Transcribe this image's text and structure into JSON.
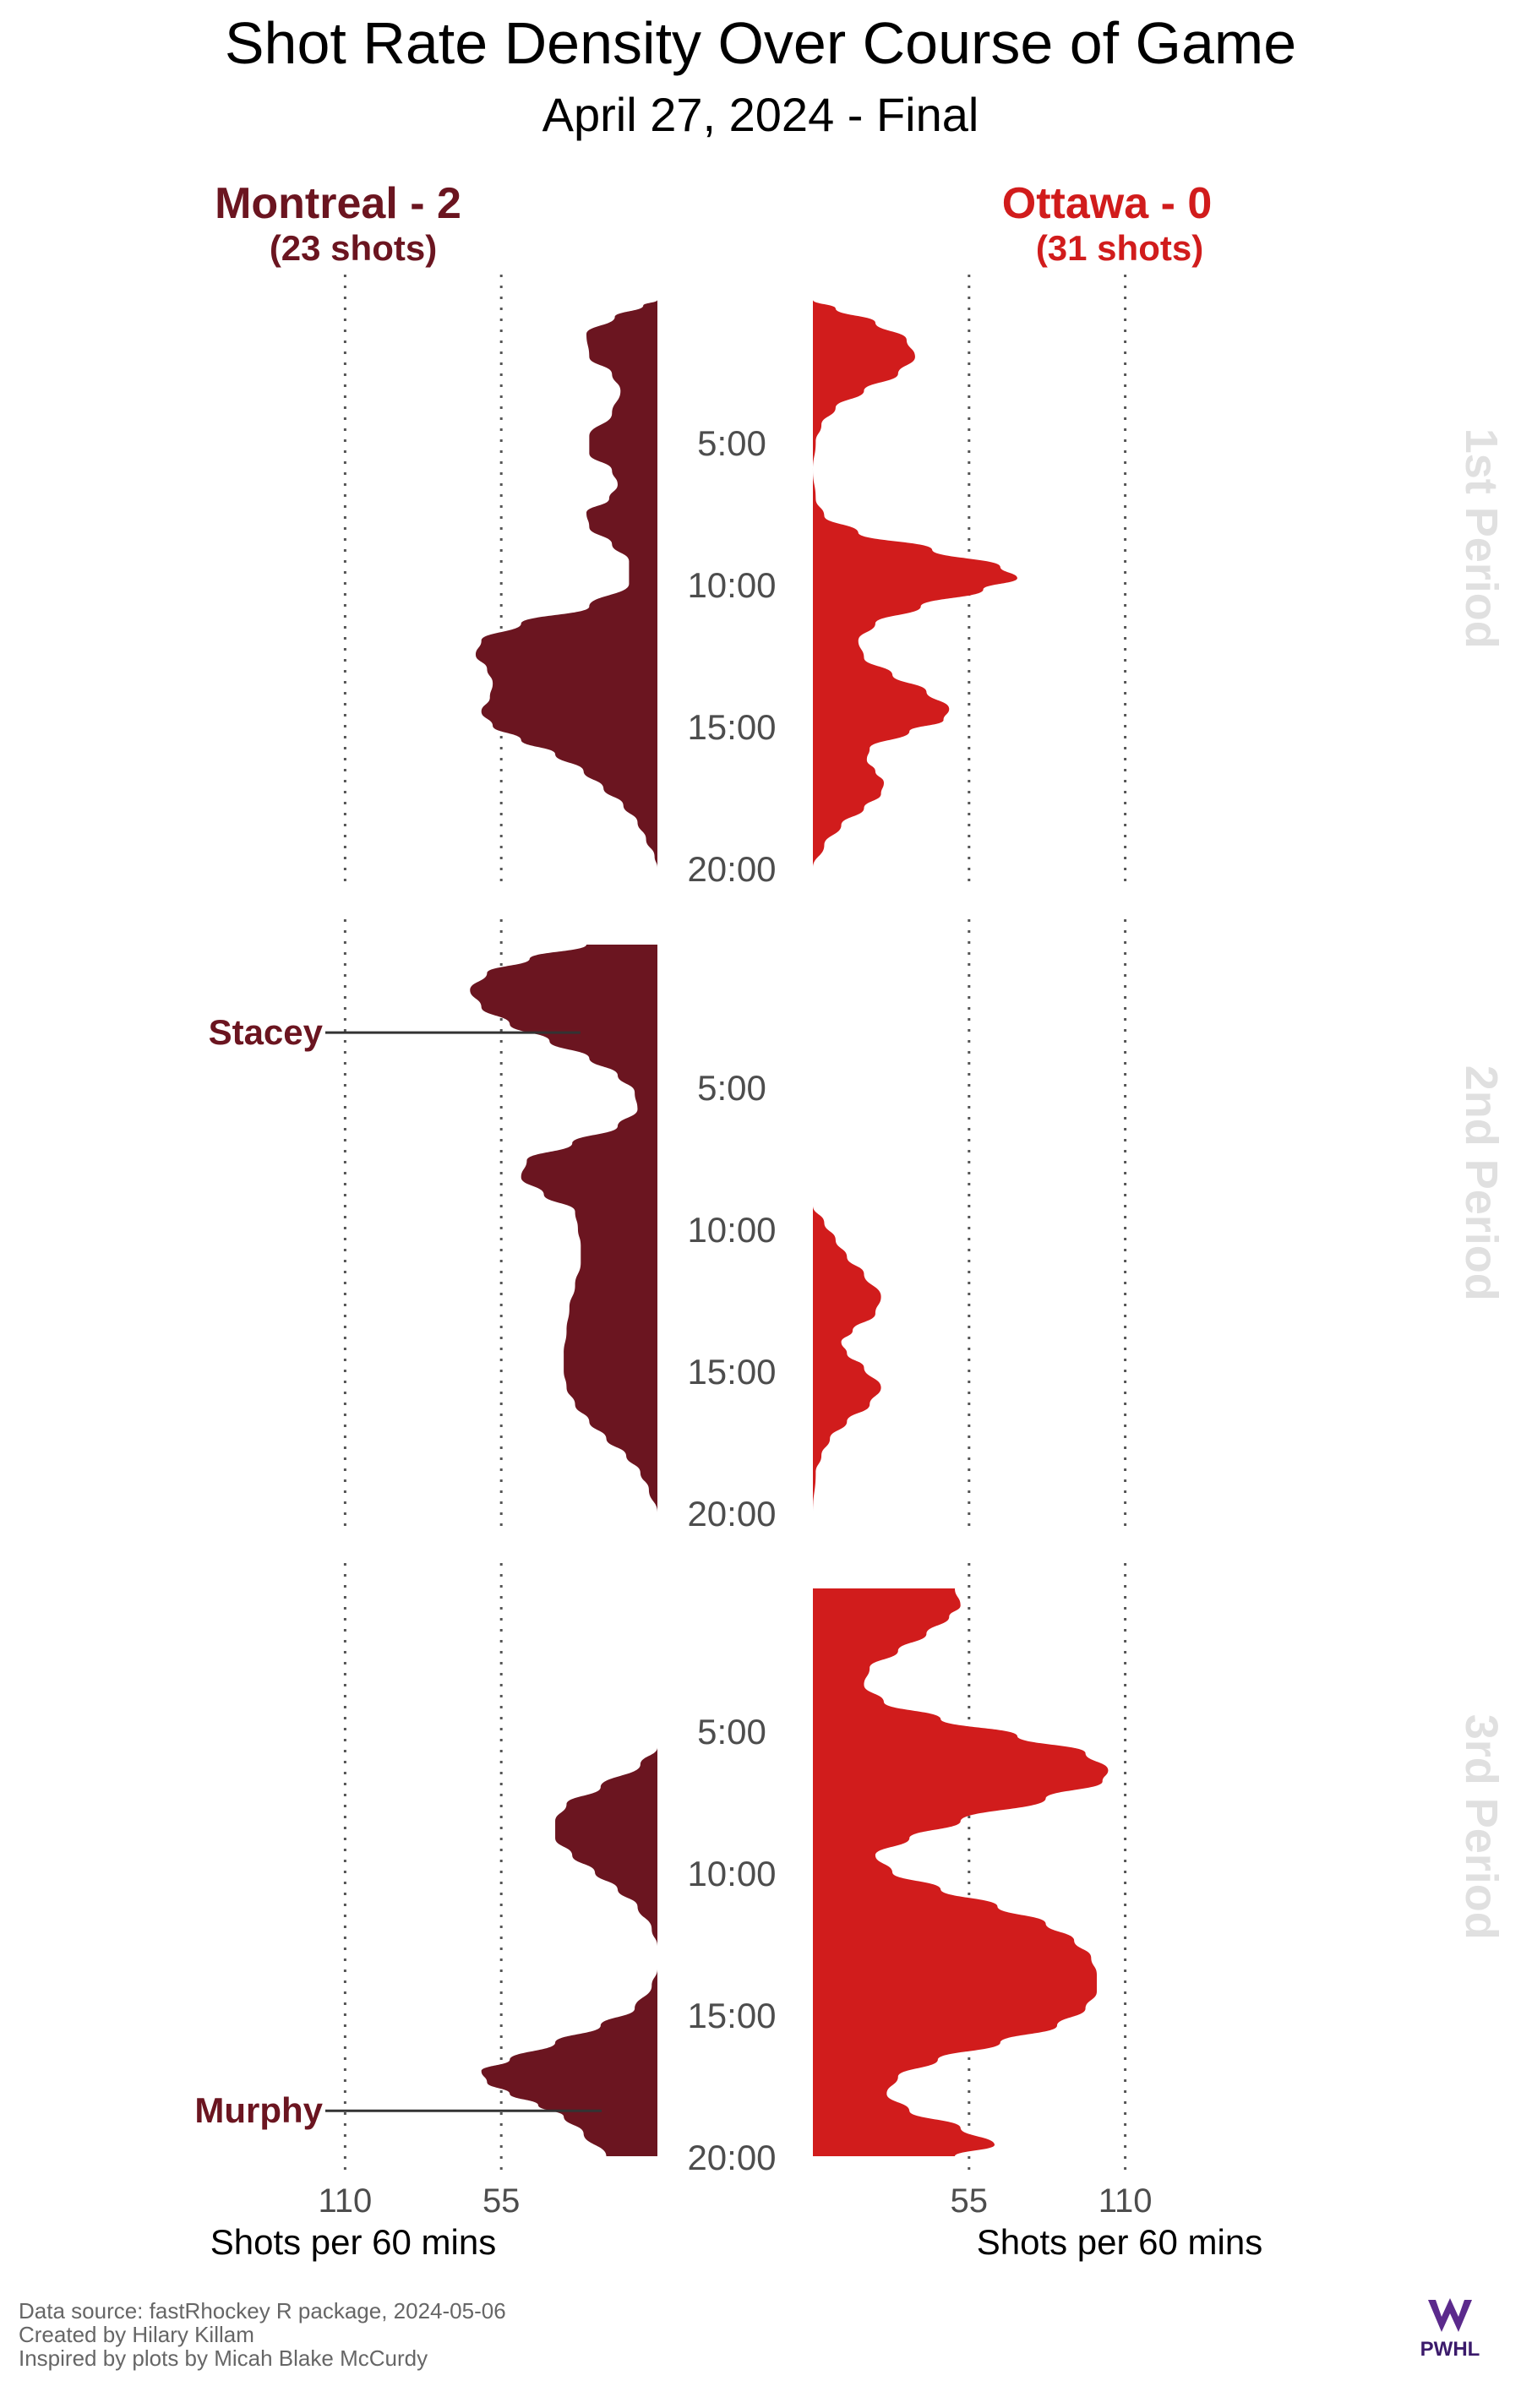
{
  "chart_data": {
    "type": "area",
    "title": "Shot Rate Density Over Course of Game",
    "subtitle": "April 27, 2024 - Final",
    "xlabel": "Shots per 60 mins",
    "x_ticks": [
      110,
      55
    ],
    "xlim": [
      0,
      160
    ],
    "time_ticks": [
      "5:00",
      "10:00",
      "15:00",
      "20:00"
    ],
    "ylim_minutes": [
      0,
      20
    ],
    "grid": "dotted vertical lines at 55 and 110",
    "teams": [
      {
        "name": "Montreal - 2",
        "shots_label": "(23 shots)",
        "color": "#6b1520",
        "side": "left",
        "periods": [
          {
            "period": "1st Period",
            "density": [
              [
                0,
                0
              ],
              [
                0.2,
                5
              ],
              [
                0.6,
                15
              ],
              [
                1.2,
                25
              ],
              [
                2,
                24
              ],
              [
                2.6,
                16
              ],
              [
                3.2,
                13
              ],
              [
                4,
                16
              ],
              [
                4.8,
                24
              ],
              [
                5.4,
                24
              ],
              [
                6,
                16
              ],
              [
                6.5,
                14
              ],
              [
                7,
                17
              ],
              [
                7.5,
                25
              ],
              [
                8,
                24
              ],
              [
                8.6,
                16
              ],
              [
                9.2,
                10
              ],
              [
                10,
                10
              ],
              [
                10.8,
                24
              ],
              [
                11.4,
                48
              ],
              [
                12,
                62
              ],
              [
                12.5,
                64
              ],
              [
                13,
                60
              ],
              [
                13.5,
                58
              ],
              [
                14,
                59
              ],
              [
                14.5,
                62
              ],
              [
                15,
                58
              ],
              [
                15.5,
                48
              ],
              [
                16,
                36
              ],
              [
                16.6,
                26
              ],
              [
                17.2,
                19
              ],
              [
                17.8,
                12
              ],
              [
                18.4,
                7
              ],
              [
                19,
                4
              ],
              [
                19.6,
                1
              ],
              [
                20,
                0
              ]
            ]
          },
          {
            "period": "2nd Period",
            "density": [
              [
                0,
                25
              ],
              [
                0.5,
                45
              ],
              [
                1,
                60
              ],
              [
                1.6,
                66
              ],
              [
                2.2,
                62
              ],
              [
                2.8,
                52
              ],
              [
                3.4,
                38
              ],
              [
                4,
                24
              ],
              [
                4.6,
                14
              ],
              [
                5.2,
                8
              ],
              [
                5.8,
                7
              ],
              [
                6.4,
                14
              ],
              [
                7,
                30
              ],
              [
                7.6,
                46
              ],
              [
                8.2,
                48
              ],
              [
                8.8,
                40
              ],
              [
                9.4,
                29
              ],
              [
                10,
                28
              ],
              [
                10.6,
                27
              ],
              [
                11.2,
                27
              ],
              [
                12,
                29
              ],
              [
                12.8,
                31
              ],
              [
                13.6,
                32
              ],
              [
                14.4,
                33
              ],
              [
                15,
                33
              ],
              [
                15.6,
                32
              ],
              [
                16.2,
                29
              ],
              [
                16.8,
                24
              ],
              [
                17.4,
                18
              ],
              [
                18,
                11
              ],
              [
                18.6,
                6
              ],
              [
                19.2,
                3
              ],
              [
                20,
                0
              ]
            ]
          },
          {
            "period": "3rd Period",
            "density": [
              [
                0,
                0
              ],
              [
                4,
                0
              ],
              [
                5.6,
                0
              ],
              [
                6.2,
                6
              ],
              [
                7,
                20
              ],
              [
                7.6,
                32
              ],
              [
                8.2,
                36
              ],
              [
                8.8,
                36
              ],
              [
                9.4,
                30
              ],
              [
                10,
                22
              ],
              [
                10.6,
                14
              ],
              [
                11.2,
                7
              ],
              [
                12,
                2
              ],
              [
                12.6,
                0
              ],
              [
                13.4,
                0
              ],
              [
                14,
                2
              ],
              [
                14.8,
                8
              ],
              [
                15.4,
                20
              ],
              [
                16,
                36
              ],
              [
                16.6,
                52
              ],
              [
                17,
                62
              ],
              [
                17.4,
                60
              ],
              [
                17.8,
                52
              ],
              [
                18.2,
                42
              ],
              [
                18.6,
                33
              ],
              [
                19.2,
                26
              ],
              [
                20,
                18
              ]
            ]
          }
        ]
      },
      {
        "name": "Ottawa - 0",
        "shots_label": "(31 shots)",
        "color": "#d11c1c",
        "side": "right",
        "periods": [
          {
            "period": "1st Period",
            "density": [
              [
                0,
                0
              ],
              [
                0.3,
                8
              ],
              [
                0.8,
                22
              ],
              [
                1.4,
                33
              ],
              [
                2,
                36
              ],
              [
                2.6,
                30
              ],
              [
                3.2,
                18
              ],
              [
                3.8,
                8
              ],
              [
                4.4,
                3
              ],
              [
                5,
                1
              ],
              [
                6,
                0
              ],
              [
                7,
                1
              ],
              [
                7.6,
                4
              ],
              [
                8.2,
                16
              ],
              [
                8.8,
                42
              ],
              [
                9.4,
                66
              ],
              [
                9.8,
                72
              ],
              [
                10.2,
                60
              ],
              [
                10.8,
                38
              ],
              [
                11.4,
                22
              ],
              [
                12,
                16
              ],
              [
                12.6,
                18
              ],
              [
                13.2,
                28
              ],
              [
                13.8,
                40
              ],
              [
                14.4,
                48
              ],
              [
                14.8,
                46
              ],
              [
                15.2,
                34
              ],
              [
                15.8,
                20
              ],
              [
                16.2,
                19
              ],
              [
                16.6,
                22
              ],
              [
                17,
                25
              ],
              [
                17.4,
                24
              ],
              [
                17.9,
                18
              ],
              [
                18.5,
                10
              ],
              [
                19.2,
                4
              ],
              [
                20,
                0
              ]
            ]
          },
          {
            "period": "2nd Period",
            "density": [
              [
                0,
                0
              ],
              [
                8,
                0
              ],
              [
                9.2,
                0
              ],
              [
                9.8,
                4
              ],
              [
                10.4,
                8
              ],
              [
                11,
                12
              ],
              [
                11.6,
                18
              ],
              [
                12.4,
                24
              ],
              [
                13,
                22
              ],
              [
                13.6,
                14
              ],
              [
                14,
                10
              ],
              [
                14.4,
                12
              ],
              [
                14.9,
                18
              ],
              [
                15.6,
                24
              ],
              [
                16.2,
                20
              ],
              [
                16.8,
                12
              ],
              [
                17.4,
                6
              ],
              [
                18,
                3
              ],
              [
                18.6,
                1
              ],
              [
                20,
                0
              ]
            ]
          },
          {
            "period": "3rd Period",
            "density": [
              [
                0,
                50
              ],
              [
                0.6,
                52
              ],
              [
                1,
                48
              ],
              [
                1.6,
                40
              ],
              [
                2.2,
                30
              ],
              [
                2.8,
                20
              ],
              [
                3.4,
                18
              ],
              [
                4,
                25
              ],
              [
                4.6,
                45
              ],
              [
                5.2,
                72
              ],
              [
                5.8,
                96
              ],
              [
                6.4,
                104
              ],
              [
                6.8,
                102
              ],
              [
                7.4,
                82
              ],
              [
                8.2,
                52
              ],
              [
                8.8,
                34
              ],
              [
                9.4,
                22
              ],
              [
                10,
                28
              ],
              [
                10.6,
                45
              ],
              [
                11.2,
                65
              ],
              [
                11.8,
                82
              ],
              [
                12.4,
                92
              ],
              [
                13,
                98
              ],
              [
                13.6,
                100
              ],
              [
                14.2,
                100
              ],
              [
                14.8,
                96
              ],
              [
                15.4,
                86
              ],
              [
                16,
                66
              ],
              [
                16.6,
                44
              ],
              [
                17.2,
                30
              ],
              [
                17.8,
                26
              ],
              [
                18.4,
                34
              ],
              [
                19,
                52
              ],
              [
                19.6,
                64
              ],
              [
                20,
                50
              ]
            ]
          }
        ]
      }
    ],
    "annotations": [
      {
        "label": "Stacey",
        "team": "Montreal - 2",
        "period": "2nd Period",
        "minute": 3.1
      },
      {
        "label": "Murphy",
        "team": "Montreal - 2",
        "period": "3rd Period",
        "minute": 18.4
      }
    ]
  },
  "caption": {
    "line1": "Data source: fastRhockey R package, 2024-05-06",
    "line2": "Created by Hilary Killam",
    "line3": "Inspired by plots by Micah Blake McCurdy"
  },
  "logo_text": "PWHL"
}
